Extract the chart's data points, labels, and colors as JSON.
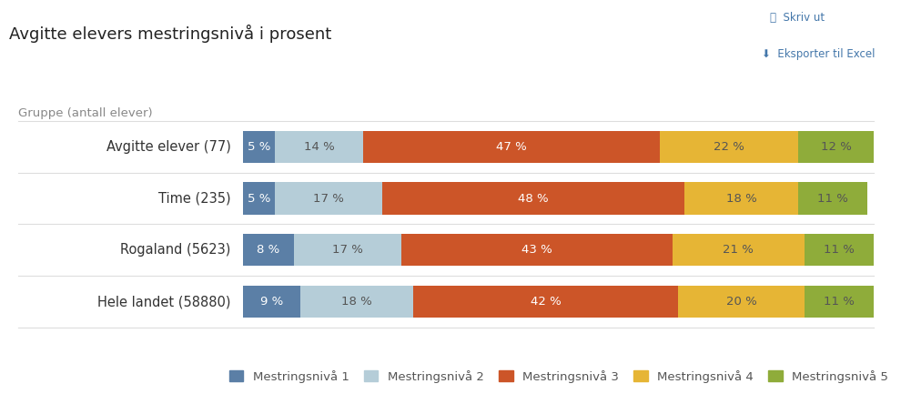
{
  "title": "Avgitte elevers mestringsnivå i prosent",
  "col_header": "Gruppe (antall elever)",
  "rows": [
    {
      "label": "Avgitte elever (77)",
      "values": [
        5,
        14,
        47,
        22,
        12
      ]
    },
    {
      "label": "Time (235)",
      "values": [
        5,
        17,
        48,
        18,
        11
      ]
    },
    {
      "label": "Rogaland (5623)",
      "values": [
        8,
        17,
        43,
        21,
        11
      ]
    },
    {
      "label": "Hele landet (58880)",
      "values": [
        9,
        18,
        42,
        20,
        11
      ]
    }
  ],
  "legend_labels": [
    "Mestringsnivå 1",
    "Mestringsnivå 2",
    "Mestringsnivå 3",
    "Mestringsnivå 4",
    "Mestringsnivå 5"
  ],
  "colors": [
    "#5b7fa6",
    "#b5cdd8",
    "#cc5528",
    "#e6b535",
    "#8fac3a"
  ],
  "text_colors": [
    "#ffffff",
    "#555555",
    "#ffffff",
    "#555555",
    "#555555"
  ],
  "bg_color": "#ffffff",
  "bar_height": 0.62,
  "label_fontsize": 10.5,
  "title_fontsize": 13,
  "value_fontsize": 9.5,
  "header_fontsize": 9.5,
  "legend_fontsize": 9.5,
  "separator_color": "#dddddd",
  "top_right_color": "#4477aa"
}
